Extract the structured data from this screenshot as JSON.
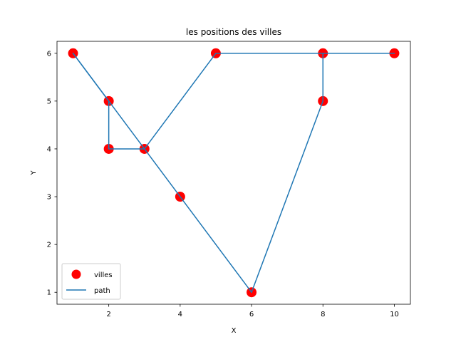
{
  "chart_data": {
    "type": "scatter",
    "title": "les positions des villes",
    "xlabel": "X",
    "ylabel": "Y",
    "xlim": [
      0.55,
      10.45
    ],
    "ylim": [
      0.75,
      6.25
    ],
    "x_ticks": [
      2,
      4,
      6,
      8,
      10
    ],
    "y_ticks": [
      1,
      2,
      3,
      4,
      5,
      6
    ],
    "grid": false,
    "legend_position": "lower-left",
    "series": [
      {
        "name": "villes",
        "kind": "scatter",
        "color": "#ff0000",
        "points": [
          [
            1,
            6
          ],
          [
            2,
            5
          ],
          [
            2,
            4
          ],
          [
            3,
            4
          ],
          [
            4,
            3
          ],
          [
            5,
            6
          ],
          [
            6,
            1
          ],
          [
            8,
            6
          ],
          [
            8,
            5
          ],
          [
            10,
            6
          ]
        ]
      },
      {
        "name": "path",
        "kind": "line",
        "color": "#1f77b4",
        "points": [
          [
            1,
            6
          ],
          [
            2,
            5
          ],
          [
            2,
            4
          ],
          [
            3,
            4
          ],
          [
            5,
            6
          ],
          [
            8,
            6
          ],
          [
            10,
            6
          ],
          [
            8,
            6
          ],
          [
            8,
            5
          ],
          [
            6,
            1
          ],
          [
            4,
            3
          ],
          [
            3,
            4
          ],
          [
            2,
            5
          ],
          [
            1,
            6
          ]
        ]
      }
    ]
  }
}
